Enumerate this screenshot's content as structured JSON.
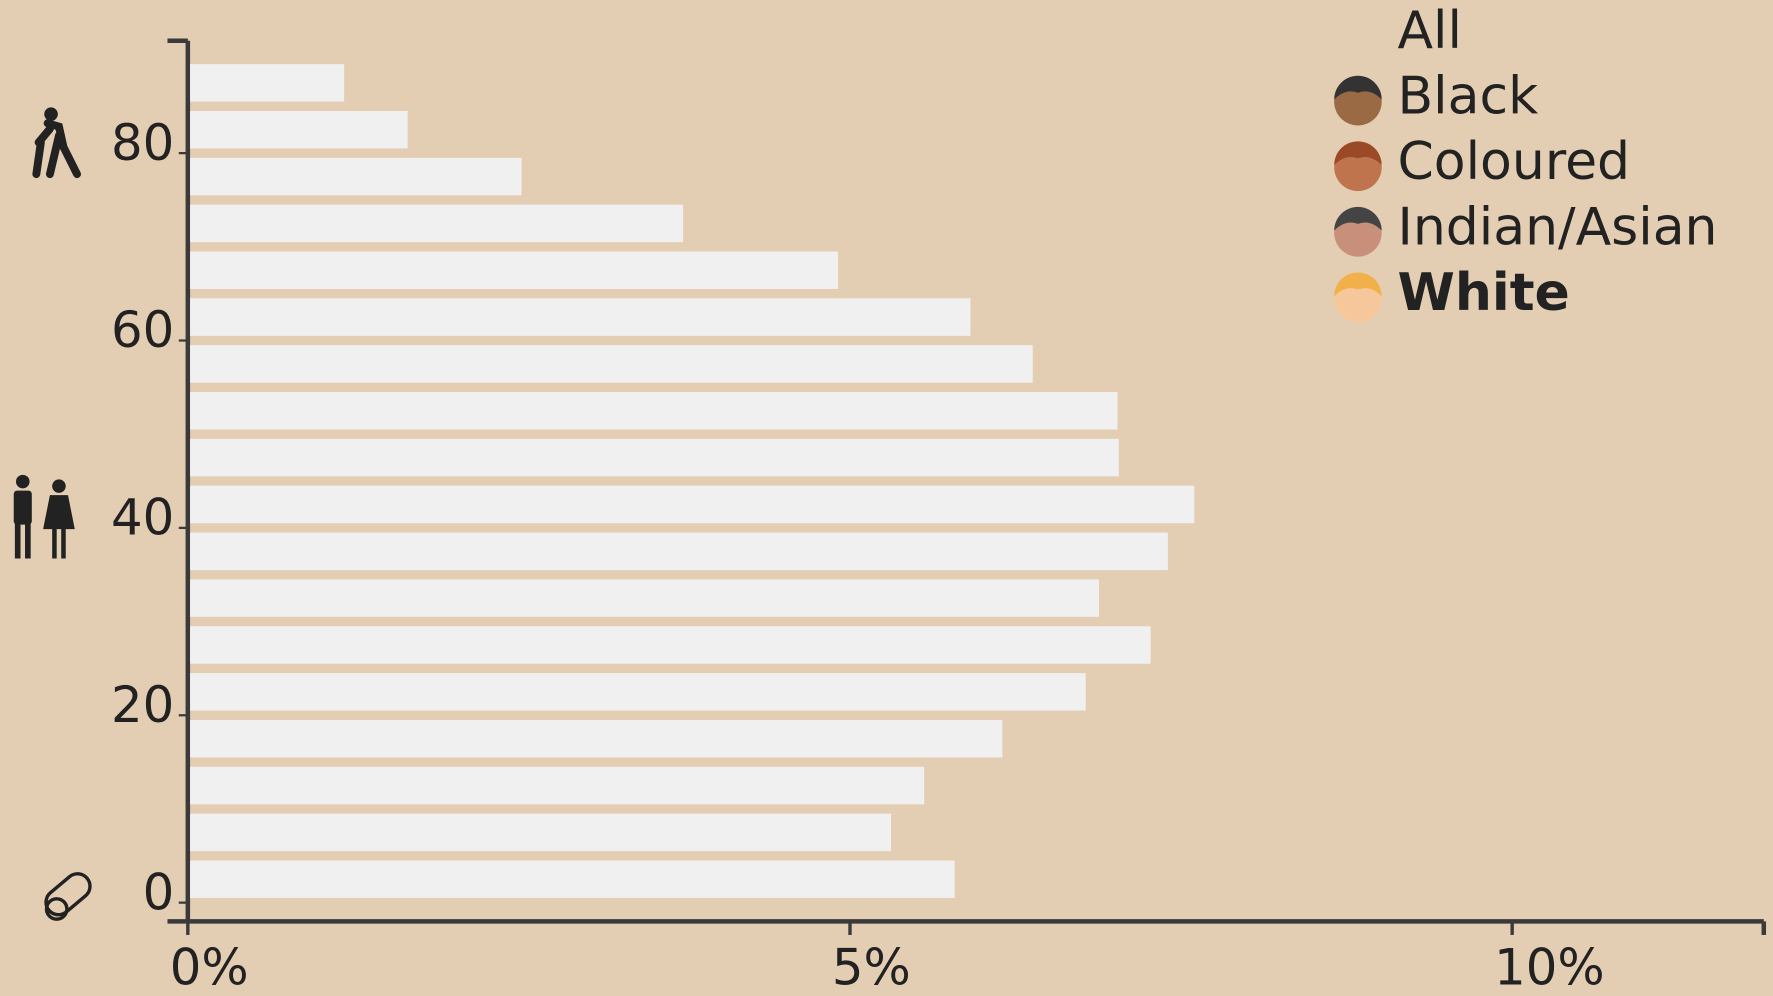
{
  "chart_data": {
    "type": "bar",
    "orientation": "horizontal",
    "categories": [
      null,
      null,
      null,
      null,
      null,
      null,
      null,
      null,
      null,
      null,
      null,
      null,
      null,
      null,
      null,
      null,
      null,
      null
    ],
    "series": [
      {
        "name": "White",
        "color": "#f0f0f0",
        "values": [
          5.79,
          5.31,
          5.56,
          6.15,
          6.78,
          7.27,
          6.88,
          7.4,
          7.6,
          7.03,
          7.02,
          6.38,
          5.91,
          4.91,
          3.74,
          2.52,
          1.66,
          1.18
        ]
      }
    ],
    "xlim": [
      0,
      11.9
    ],
    "xticks": [
      {
        "value": 0,
        "label": "0%"
      },
      {
        "value": 5,
        "label": "5%"
      },
      {
        "value": 10,
        "label": "10%"
      }
    ],
    "ylim": [
      -2,
      92
    ],
    "yticks": [
      0,
      20,
      40,
      60,
      80
    ],
    "legend": {
      "items": [
        "All",
        "Black",
        "Coloured",
        "Indian/Asian",
        "White"
      ],
      "selected": 4,
      "face_colors": [
        null,
        "#9a6a45",
        "#c0744e",
        "#c8907a",
        "#f6c79a"
      ],
      "hair_colors": [
        null,
        "#333",
        "#9b4a28",
        "#444",
        "#f2b04a"
      ]
    }
  }
}
